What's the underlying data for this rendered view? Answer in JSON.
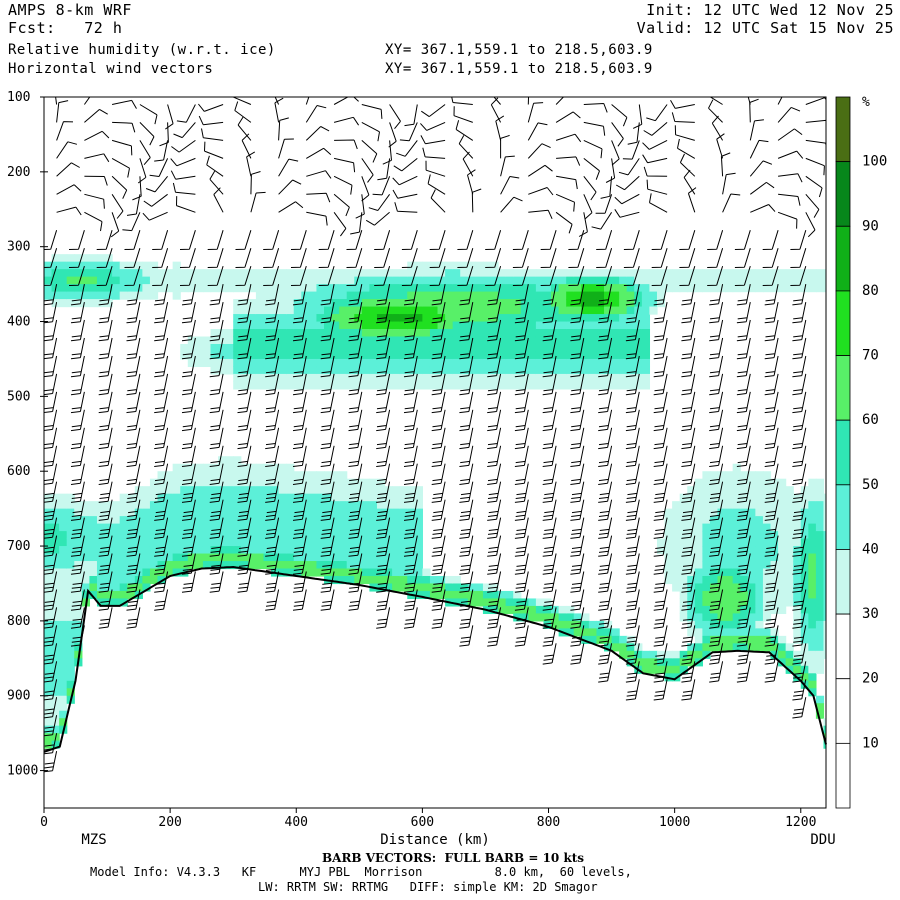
{
  "header": {
    "model": "AMPS 8-km WRF",
    "forecast": "Fcst:   72 h",
    "field1": "Relative humidity (w.r.t. ice)",
    "field2": "Horizontal wind vectors",
    "xy1": "XY= 367.1,559.1 to 218.5,603.9",
    "xy2": "XY= 367.1,559.1 to 218.5,603.9",
    "init": "Init: 12 UTC Wed 12 Nov 25",
    "valid": "Valid: 12 UTC Sat 15 Nov 25"
  },
  "footer": {
    "barb_note": "BARB VECTORS:  FULL BARB = 10 kts",
    "model_info_1": "Model Info: V4.3.3   KF      MYJ PBL  Morrison          8.0 km,  60 levels,",
    "model_info_2": "LW: RRTM SW: RRTMG   DIFF: simple KM: 2D Smagor"
  },
  "chart_data": {
    "type": "heatmap",
    "title": "Relative humidity (w.r.t. ice)",
    "xlabel": "Distance (km)",
    "ylabel": "",
    "xlim": [
      0,
      1240
    ],
    "ylim": [
      1050,
      100
    ],
    "x_ticks": [
      0,
      200,
      400,
      600,
      800,
      1000,
      1200
    ],
    "y_ticks": [
      100,
      200,
      300,
      400,
      500,
      600,
      700,
      800,
      900,
      1000
    ],
    "endpoints": {
      "left": "MZS",
      "right": "DDU"
    },
    "colorbar": {
      "unit": "%",
      "ticks": [
        10,
        20,
        30,
        40,
        50,
        60,
        70,
        80,
        90,
        100
      ],
      "colors": [
        "#ffffff",
        "#ffffff",
        "#ffffff",
        "#c8f8ee",
        "#5cf0d8",
        "#30e6b4",
        "#58f068",
        "#20e020",
        "#10b018",
        "#07871b",
        "#4a6e14"
      ]
    },
    "rh_bands": [
      {
        "name": "upper moist layer",
        "pressure_hpa": [
          290,
          520
        ],
        "rh_pct": [
          40,
          80
        ]
      },
      {
        "name": "lower moist layer",
        "pressure_hpa": [
          600,
          900
        ],
        "rh_pct": [
          40,
          70
        ]
      }
    ],
    "terrain": {
      "x": [
        0,
        25,
        50,
        70,
        90,
        120,
        150,
        200,
        250,
        300,
        400,
        500,
        600,
        700,
        800,
        900,
        950,
        1000,
        1060,
        1100,
        1150,
        1180,
        1200,
        1220,
        1240
      ],
      "p": [
        975,
        968,
        880,
        760,
        780,
        780,
        765,
        740,
        730,
        728,
        740,
        752,
        768,
        785,
        808,
        840,
        870,
        878,
        842,
        840,
        842,
        865,
        880,
        900,
        965
      ]
    }
  }
}
